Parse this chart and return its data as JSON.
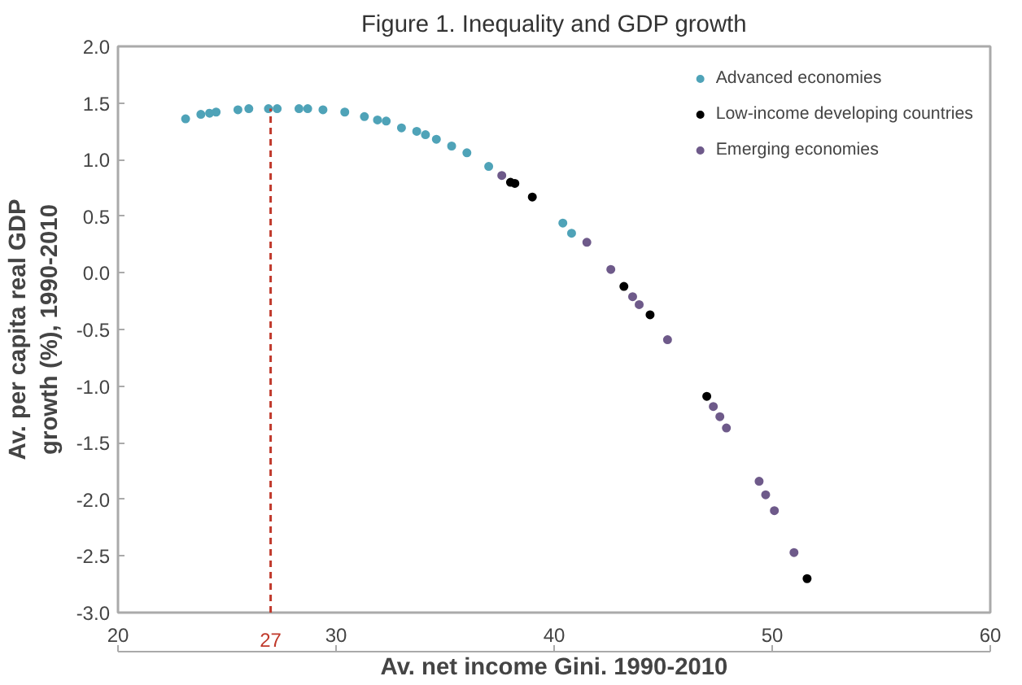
{
  "chart_data": {
    "type": "scatter",
    "title": "Figure 1. Inequality and GDP growth",
    "xlabel": "Av. net income Gini. 1990-2010",
    "ylabel": "Av. per capita real GDP\ngrowth (%), 1990-2010",
    "series": [
      {
        "name": "Advanced economies",
        "color": "#4fa3b8",
        "x": [
          23.1,
          23.8,
          24.2,
          24.5,
          25.5,
          26.0,
          26.9,
          27.3,
          28.3,
          28.7,
          29.4,
          30.4,
          31.3,
          31.9,
          32.3,
          33.0,
          33.7,
          34.1,
          34.6,
          35.3,
          36.0,
          37.0,
          40.4,
          40.8
        ],
        "values": [
          1.36,
          1.4,
          1.41,
          1.42,
          1.44,
          1.45,
          1.45,
          1.45,
          1.45,
          1.45,
          1.44,
          1.42,
          1.38,
          1.35,
          1.34,
          1.28,
          1.25,
          1.22,
          1.18,
          1.12,
          1.06,
          0.94,
          0.44,
          0.35
        ]
      },
      {
        "name": "Low-income developing countries",
        "color": "#000000",
        "x": [
          38.0,
          38.2,
          39.0,
          43.2,
          44.4,
          47.0,
          51.6
        ],
        "values": [
          0.8,
          0.79,
          0.67,
          -0.12,
          -0.37,
          -1.09,
          -2.7
        ]
      },
      {
        "name": "Emerging economies",
        "color": "#6e5a8a",
        "x": [
          37.6,
          41.5,
          42.6,
          43.6,
          43.9,
          45.2,
          47.3,
          47.6,
          47.9,
          49.4,
          49.7,
          50.1,
          51.0
        ],
        "values": [
          0.86,
          0.27,
          0.03,
          -0.21,
          -0.28,
          -0.59,
          -1.18,
          -1.27,
          -1.37,
          -1.84,
          -1.96,
          -2.1,
          -2.47
        ]
      }
    ],
    "xlim": [
      20,
      60
    ],
    "xticks": [
      20,
      30,
      40,
      50,
      60
    ],
    "ylim": [
      -3,
      2
    ],
    "yticks": [
      {
        "value": -3,
        "label": "-3.0"
      },
      {
        "value": -2.5,
        "label": "-2.5"
      },
      {
        "value": -2,
        "label": "-2.0"
      },
      {
        "value": -1.5,
        "label": "-1.5"
      },
      {
        "value": -1,
        "label": "-1.0"
      },
      {
        "value": -0.5,
        "label": "-0.5"
      },
      {
        "value": 0,
        "label": "0.0"
      },
      {
        "value": 0.5,
        "label": "0.5"
      },
      {
        "value": 1,
        "label": "1.0"
      },
      {
        "value": 1.5,
        "label": "1.5"
      },
      {
        "value": 2,
        "label": "2.0"
      }
    ],
    "ref_lines": [
      {
        "axis": "x",
        "value": 27,
        "label": "27",
        "color": "#c0392b",
        "line_style": "dashed"
      }
    ],
    "marker": "circle",
    "grid": false,
    "legend": "top right"
  }
}
